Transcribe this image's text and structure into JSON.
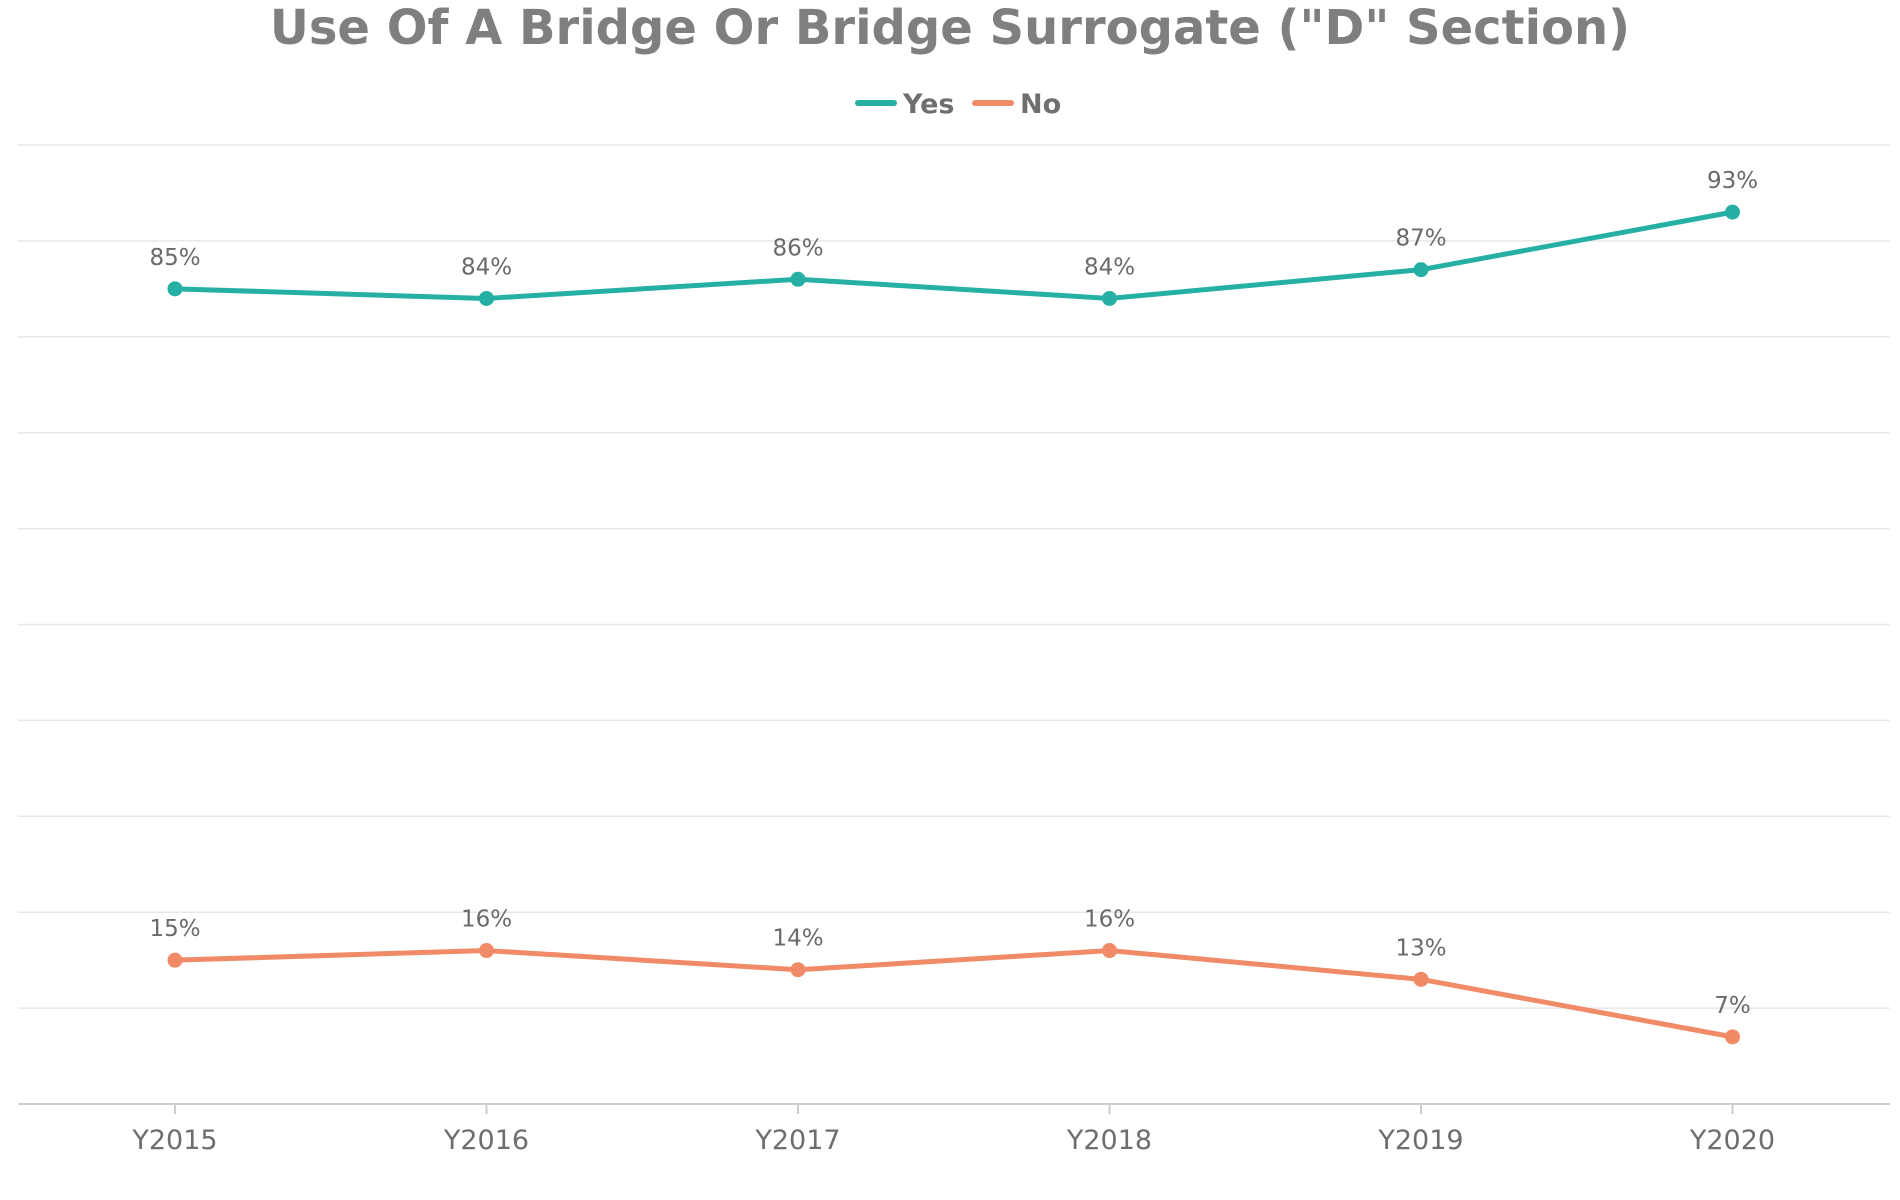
{
  "chart_data": {
    "type": "line",
    "title": "Use Of A Bridge Or Bridge Surrogate (\"D\" Section)",
    "categories": [
      "Y2015",
      "Y2016",
      "Y2017",
      "Y2018",
      "Y2019",
      "Y2020"
    ],
    "series": [
      {
        "name": "Yes",
        "color": "#26b0a5",
        "values": [
          85,
          84,
          86,
          84,
          87,
          93
        ],
        "labels": [
          "85%",
          "84%",
          "86%",
          "84%",
          "87%",
          "93%"
        ]
      },
      {
        "name": "No",
        "color": "#f08a67",
        "values": [
          15,
          16,
          14,
          16,
          13,
          7
        ],
        "labels": [
          "15%",
          "16%",
          "14%",
          "16%",
          "13%",
          "7%"
        ]
      }
    ],
    "ylim": [
      0,
      100
    ],
    "grid": true,
    "legend": "top-center",
    "axis_color": "#cccccc",
    "grid_color": "#e8e8e8"
  }
}
